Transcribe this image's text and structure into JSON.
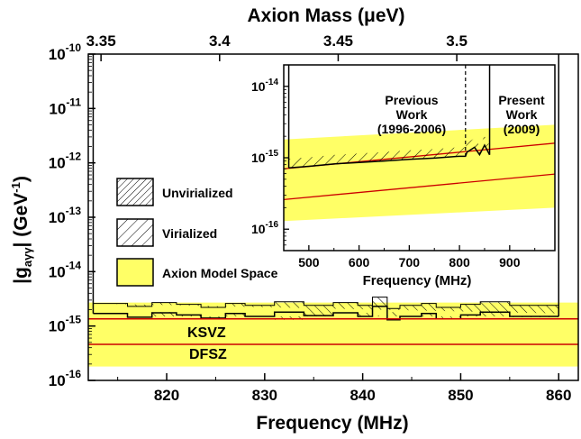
{
  "chart_data": [
    {
      "type": "area",
      "xlabel": "Frequency (MHz)",
      "ylabel": "|g_aγγ| (GeV^-1)",
      "x2label": "Axion Mass (μeV)",
      "xlim": [
        812,
        862
      ],
      "ylim_log10": [
        -16,
        -10
      ],
      "scale_y": "log",
      "x_ticks": [
        820,
        830,
        840,
        850,
        860
      ],
      "y_ticks": [
        {
          "base": "10",
          "exp": "-10"
        },
        {
          "base": "10",
          "exp": "-11"
        },
        {
          "base": "10",
          "exp": "-12"
        },
        {
          "base": "10",
          "exp": "-13"
        },
        {
          "base": "10",
          "exp": "-14"
        },
        {
          "base": "10",
          "exp": "-15"
        },
        {
          "base": "10",
          "exp": "-16"
        }
      ],
      "x2_ticks": [
        "3.35",
        "3.4",
        "3.45",
        "3.5"
      ],
      "x2_tick_freq": [
        813.3,
        825.4,
        837.5,
        849.6
      ],
      "axion_band": {
        "freq": [
          812,
          862
        ],
        "low": [
          1.8e-16,
          1.8e-16
        ],
        "high": [
          2.7e-15,
          2.7e-15
        ]
      },
      "ksvz": {
        "label": "KSVZ",
        "value": 1.35e-15
      },
      "dfsz": {
        "label": "DFSZ",
        "value": 4.6e-16
      },
      "virialized_limit": {
        "freq": [
          812.5,
          816,
          818.5,
          821,
          823.5,
          826,
          828,
          831,
          834,
          837,
          839.5,
          841,
          842.5,
          843.8,
          846,
          847.5,
          850,
          852,
          855,
          860
        ],
        "value": [
          1.7e-15,
          1.45e-15,
          1.75e-15,
          1.6e-15,
          1.4e-15,
          1.7e-15,
          1.5e-15,
          1.8e-15,
          1.55e-15,
          1.75e-15,
          1.5e-15,
          2.3e-15,
          1.3e-15,
          1.5e-15,
          1.7e-15,
          1.35e-15,
          1.6e-15,
          1.8e-15,
          1.5e-15,
          1.5e-15
        ]
      },
      "unvirialized_limit": {
        "freq": [
          812.5,
          816,
          818.5,
          821,
          823.5,
          826,
          828,
          831,
          834,
          837,
          839.5,
          841,
          842.5,
          843.8,
          846,
          847.5,
          850,
          852,
          855,
          860
        ],
        "value": [
          2.6e-15,
          2.3e-15,
          2.7e-15,
          2.5e-15,
          2.2e-15,
          2.6e-15,
          2.4e-15,
          2.8e-15,
          2.4e-15,
          2.7e-15,
          2.4e-15,
          3.4e-15,
          2.1e-15,
          2.4e-15,
          2.6e-15,
          2.2e-15,
          2.5e-15,
          2.8e-15,
          2.4e-15,
          2.4e-15
        ]
      },
      "legend": {
        "placement": "left",
        "items": [
          {
            "label": "Unvirialized",
            "pattern": "dense-hatch"
          },
          {
            "label": "Virialized",
            "pattern": "sparse-hatch"
          },
          {
            "label": "Axion Model Space",
            "color": "#ffff66"
          }
        ]
      }
    },
    {
      "type": "line",
      "xlabel": "Frequency (MHz)",
      "xlim": [
        450,
        990
      ],
      "ylim_log10": [
        -16.3,
        -13.7
      ],
      "scale_y": "log",
      "x_ticks": [
        500,
        600,
        700,
        800,
        900
      ],
      "y_ticks": [
        {
          "base": "10",
          "exp": "-14"
        },
        {
          "base": "10",
          "exp": "-15"
        },
        {
          "base": "10",
          "exp": "-16"
        }
      ],
      "annotations": {
        "previous": [
          "Previous",
          "Work",
          "(1996-2006)"
        ],
        "present": [
          "Present",
          "Work",
          "(2009)"
        ]
      },
      "divider_freq": 812,
      "scan_range": [
        460,
        860
      ],
      "axion_band": {
        "freq": [
          450,
          990
        ],
        "low": [
          1.3e-16,
          2e-16
        ],
        "high": [
          1.8e-15,
          2.9e-15
        ]
      },
      "ksvz_line": {
        "freq": [
          450,
          990
        ],
        "value": [
          7e-16,
          1.6e-15
        ]
      },
      "dfsz_line": {
        "freq": [
          450,
          990
        ],
        "value": [
          2.6e-16,
          5.9e-16
        ]
      },
      "limit": {
        "freq": [
          460,
          500,
          550,
          600,
          650,
          700,
          750,
          800,
          812,
          815,
          830,
          840,
          850,
          860
        ],
        "value": [
          7.2e-16,
          7.6e-16,
          8.2e-16,
          8.6e-16,
          9e-16,
          9.5e-16,
          9.9e-16,
          1.05e-15,
          1.05e-15,
          1.2e-15,
          1.4e-15,
          1.1e-15,
          1.5e-15,
          1.1e-15
        ]
      }
    }
  ],
  "colors": {
    "band": "#ffff66",
    "model_line": "#cc0000",
    "axis": "#000000"
  }
}
